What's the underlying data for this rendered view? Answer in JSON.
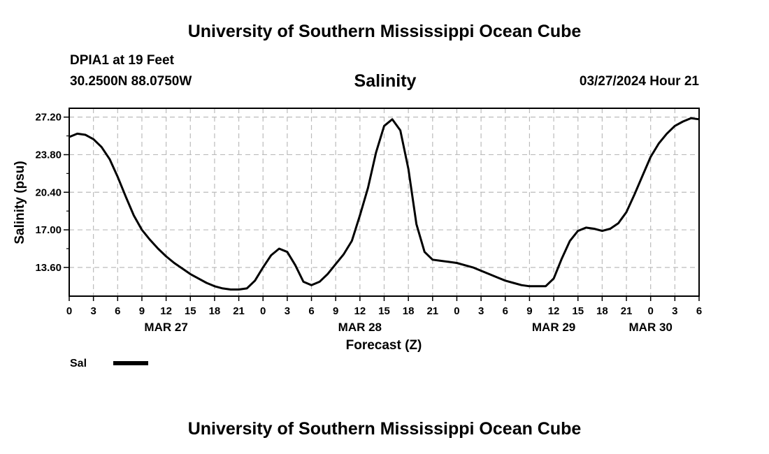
{
  "page": {
    "title_top": "University of Southern Mississippi Ocean Cube",
    "title_bottom": "University of Southern Mississippi Ocean Cube",
    "station_line": "DPIA1 at 19 Feet",
    "coords_line": "30.2500N  88.0750W",
    "chart_title": "Salinity",
    "timestamp": "03/27/2024 Hour 21"
  },
  "chart_data": {
    "type": "line",
    "title": "Salinity",
    "xlabel": "Forecast (Z)",
    "ylabel": "Salinity (psu)",
    "ylim": [
      11.0,
      28.0
    ],
    "yticks": [
      27.2,
      23.8,
      20.4,
      17.0,
      13.6
    ],
    "ytick_labels": [
      "27.20",
      "23.80",
      "20.40",
      "17.00",
      "13.60"
    ],
    "xlim": [
      0,
      78
    ],
    "xtick_hours": [
      0,
      3,
      6,
      9,
      12,
      15,
      18,
      21,
      24,
      27,
      30,
      33,
      36,
      39,
      42,
      45,
      48,
      51,
      54,
      57,
      60,
      63,
      66,
      69,
      72,
      75,
      78
    ],
    "xtick_labels": [
      "0",
      "3",
      "6",
      "9",
      "12",
      "15",
      "18",
      "21",
      "0",
      "3",
      "6",
      "9",
      "12",
      "15",
      "18",
      "21",
      "0",
      "3",
      "6",
      "9",
      "12",
      "15",
      "18",
      "21",
      "0",
      "3",
      "6"
    ],
    "date_labels": [
      {
        "text": "MAR 27",
        "hour": 12
      },
      {
        "text": "MAR 28",
        "hour": 36
      },
      {
        "text": "MAR 29",
        "hour": 60
      },
      {
        "text": "MAR 30",
        "hour": 72
      }
    ],
    "grid": true,
    "legend": [
      {
        "name": "Sal",
        "color": "#000000"
      }
    ],
    "series": [
      {
        "name": "Sal",
        "x": [
          0,
          1,
          2,
          3,
          4,
          5,
          6,
          7,
          8,
          9,
          10,
          11,
          12,
          13,
          14,
          15,
          16,
          17,
          18,
          19,
          20,
          21,
          22,
          23,
          24,
          25,
          26,
          27,
          28,
          29,
          30,
          31,
          32,
          33,
          34,
          35,
          36,
          37,
          38,
          39,
          40,
          41,
          42,
          43,
          44,
          45,
          46,
          47,
          48,
          49,
          50,
          51,
          52,
          53,
          54,
          55,
          56,
          57,
          58,
          59,
          60,
          61,
          62,
          63,
          64,
          65,
          66,
          67,
          68,
          69,
          70,
          71,
          72,
          73,
          74,
          75,
          76,
          77,
          78
        ],
        "values": [
          25.4,
          25.7,
          25.6,
          25.2,
          24.5,
          23.4,
          21.8,
          20.0,
          18.3,
          17.0,
          16.1,
          15.3,
          14.6,
          14.0,
          13.5,
          13.0,
          12.6,
          12.2,
          11.9,
          11.7,
          11.6,
          11.6,
          11.7,
          12.4,
          13.6,
          14.7,
          15.3,
          15.0,
          13.8,
          12.3,
          12.0,
          12.3,
          13.0,
          13.9,
          14.8,
          16.0,
          18.3,
          20.8,
          24.0,
          26.4,
          27.0,
          26.0,
          22.5,
          17.5,
          15.0,
          14.3,
          14.2,
          14.1,
          14.0,
          13.8,
          13.6,
          13.3,
          13.0,
          12.7,
          12.4,
          12.2,
          12.0,
          11.9,
          11.9,
          11.9,
          12.6,
          14.4,
          16.0,
          16.9,
          17.2,
          17.1,
          16.9,
          17.1,
          17.6,
          18.6,
          20.2,
          21.9,
          23.6,
          24.8,
          25.7,
          26.4,
          26.8,
          27.1,
          27.0
        ]
      }
    ]
  }
}
